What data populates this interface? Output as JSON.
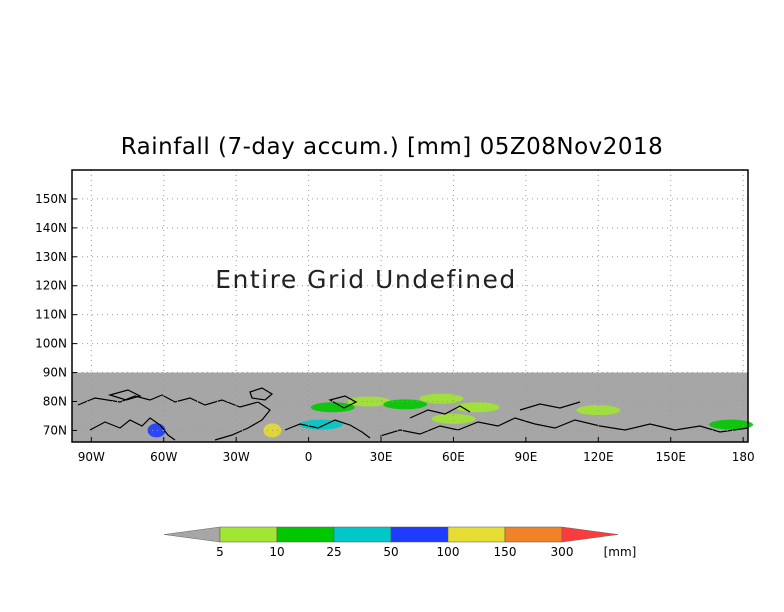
{
  "map": {
    "title": "Rainfall (7-day accum.) [mm] 05Z08Nov2018",
    "undefined_message": "Entire Grid Undefined",
    "lat_labels": [
      "150N",
      "140N",
      "130N",
      "120N",
      "110N",
      "100N",
      "90N",
      "80N",
      "70N"
    ],
    "lon_labels": [
      "90W",
      "60W",
      "30W",
      "0",
      "30E",
      "60E",
      "90E",
      "120E",
      "150E",
      "180"
    ],
    "lon_range": [
      -98,
      182
    ],
    "lat_range": [
      66,
      160
    ],
    "masked_band": {
      "lat_from": 66,
      "lat_to": 90,
      "color": "#a6a6a6"
    },
    "grid": "dotted",
    "colors": {
      "frame": "#000000",
      "grid": "#999999",
      "coast": "#000000",
      "land_mask": "#a6a6a6"
    },
    "rain_patches": [
      {
        "lon": 10,
        "lat": 78,
        "bin": 1
      },
      {
        "lon": 25,
        "lat": 80,
        "bin": 0
      },
      {
        "lon": 40,
        "lat": 79,
        "bin": 1
      },
      {
        "lon": 55,
        "lat": 81,
        "bin": 0
      },
      {
        "lon": 70,
        "lat": 78,
        "bin": 0
      },
      {
        "lon": 5,
        "lat": 72,
        "bin": 2
      },
      {
        "lon": -15,
        "lat": 70,
        "bin": 4
      },
      {
        "lon": 60,
        "lat": 74,
        "bin": 0
      },
      {
        "lon": 120,
        "lat": 77,
        "bin": 0
      },
      {
        "lon": 175,
        "lat": 72,
        "bin": 1
      },
      {
        "lon": -63,
        "lat": 70,
        "bin": 3
      }
    ]
  },
  "colorbar": {
    "bins": [
      {
        "color": "#a0e632"
      },
      {
        "color": "#00c800"
      },
      {
        "color": "#00c8c8"
      },
      {
        "color": "#1e3cff"
      },
      {
        "color": "#e6dc32"
      },
      {
        "color": "#f08228"
      }
    ],
    "under_color": "#a6a6a6",
    "over_color": "#fa3c3c",
    "labels": [
      "5",
      "10",
      "25",
      "50",
      "100",
      "150",
      "300"
    ],
    "unit": "[mm]"
  }
}
